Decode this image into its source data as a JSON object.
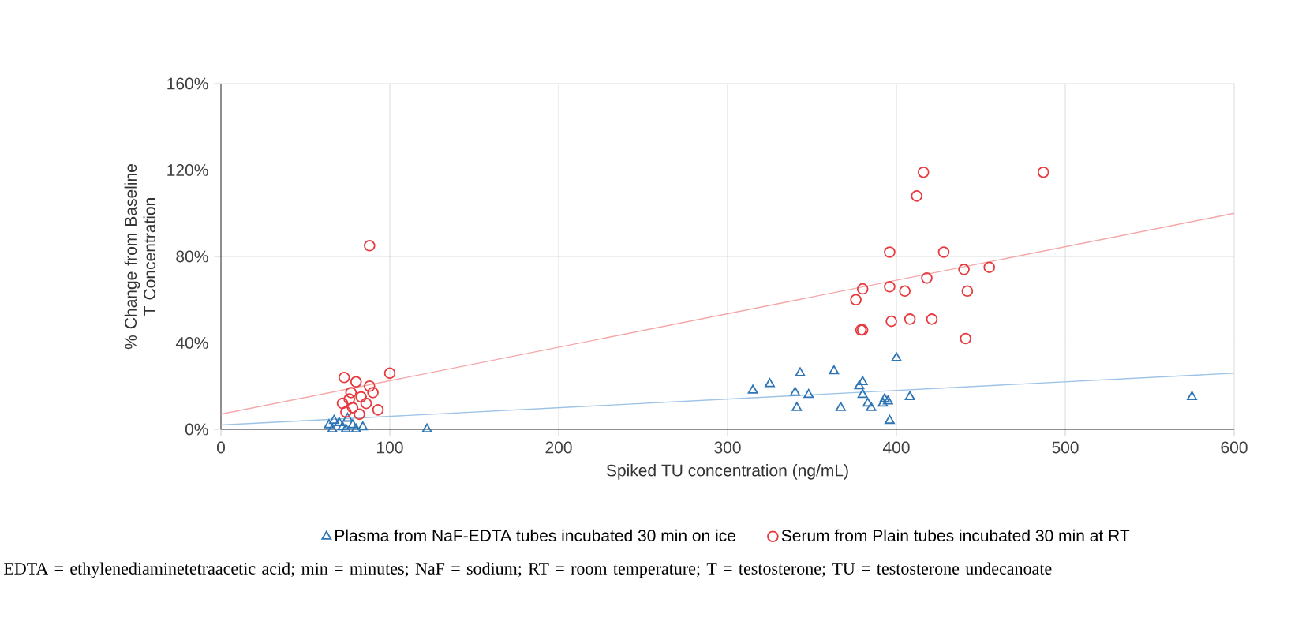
{
  "chart_data": {
    "type": "scatter",
    "xlabel": "Spiked TU concentration (ng/mL)",
    "ylabel": "% Change from Baseline T Concentration",
    "xlim": [
      0,
      600
    ],
    "xticks": [
      0,
      100,
      200,
      300,
      400,
      500,
      600
    ],
    "ylim": [
      0,
      160
    ],
    "yticks": [
      {
        "value": 0,
        "label": "0%"
      },
      {
        "value": 40,
        "label": "40%"
      },
      {
        "value": 80,
        "label": "80%"
      },
      {
        "value": 120,
        "label": "120%"
      },
      {
        "value": 160,
        "label": "160%"
      }
    ],
    "grid": true,
    "legend": "bottom",
    "series": [
      {
        "name": "Plasma from NaF-EDTA tubes incubated 30 min on ice",
        "marker": "triangle",
        "color": "#2e75b6",
        "x": [
          64,
          66,
          67,
          70,
          72,
          74,
          75,
          78,
          80,
          84,
          122,
          315,
          325,
          340,
          341,
          343,
          348,
          363,
          367,
          378,
          380,
          380,
          383,
          385,
          392,
          393,
          395,
          396,
          400,
          408,
          575
        ],
        "values": [
          2,
          0,
          4,
          3,
          1,
          0,
          5,
          2,
          0,
          1,
          0,
          18,
          21,
          17,
          10,
          26,
          16,
          27,
          10,
          20,
          22,
          16,
          12,
          10,
          12,
          14,
          13,
          4,
          33,
          15,
          15
        ]
      },
      {
        "name": "Serum from Plain tubes incubated 30 min at RT",
        "marker": "circle",
        "color": "#e8393e",
        "x": [
          72,
          73,
          74,
          76,
          77,
          78,
          80,
          82,
          83,
          86,
          88,
          88,
          90,
          93,
          100,
          376,
          379,
          380,
          380,
          396,
          396,
          397,
          405,
          408,
          412,
          416,
          418,
          421,
          428,
          440,
          441,
          442,
          455,
          487
        ],
        "values": [
          12,
          24,
          8,
          14,
          17,
          10,
          22,
          7,
          15,
          12,
          85,
          20,
          17,
          9,
          26,
          60,
          46,
          65,
          46,
          82,
          66,
          50,
          64,
          51,
          108,
          119,
          70,
          51,
          82,
          74,
          42,
          64,
          75,
          119
        ]
      },
      {
        "type": "line",
        "color": "#f4a6a8",
        "x": [
          0,
          600
        ],
        "values": [
          7,
          100
        ]
      },
      {
        "type": "line",
        "color": "#9dc3e6",
        "x": [
          0,
          600
        ],
        "values": [
          2,
          26
        ]
      }
    ],
    "annotations": [
      "EDTA = ethylenediaminetetraacetic acid; min = minutes; NaF = sodium; RT = room temperature; T = testosterone; TU = testosterone undecanoate"
    ]
  }
}
